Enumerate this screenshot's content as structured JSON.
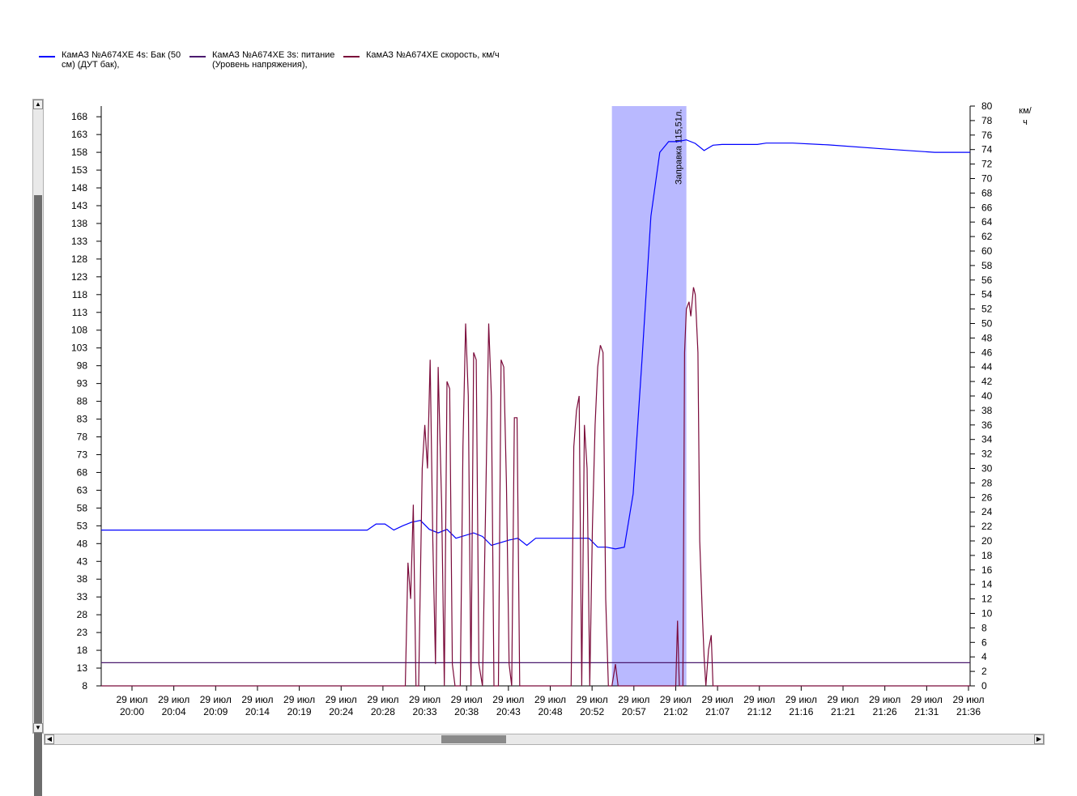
{
  "legend": [
    {
      "label": "КамАЗ №А674ХЕ 4s: Бак (50 см) (ДУТ бак),",
      "color": "#0000ff"
    },
    {
      "label": "КамАЗ №А674ХЕ 3s: питание (Уровень напряжения),",
      "color": "#4b1a6e"
    },
    {
      "label": "КамАЗ №А674ХЕ скорость, км/ч",
      "color": "#7a0a3a"
    }
  ],
  "scrollbars": {
    "up_icon": "up-arrow-icon",
    "down_icon": "down-arrow-icon",
    "left_icon": "left-arrow-icon",
    "right_icon": "right-arrow-icon"
  },
  "chart_data": {
    "type": "line",
    "x_ticks": [
      "29 июл\n20:00",
      "29 июл\n20:04",
      "29 июл\n20:09",
      "29 июл\n20:14",
      "29 июл\n20:19",
      "29 июл\n20:24",
      "29 июл\n20:28",
      "29 июл\n20:33",
      "29 июл\n20:38",
      "29 июл\n20:43",
      "29 июл\n20:48",
      "29 июл\n20:52",
      "29 июл\n20:57",
      "29 июл\n21:02",
      "29 июл\n21:07",
      "29 июл\n21:12",
      "29 июл\n21:16",
      "29 июл\n21:21",
      "29 июл\n21:26",
      "29 июл\n21:31",
      "29 июл\n21:36"
    ],
    "xlim": [
      "19:58",
      "21:36"
    ],
    "left_axis": {
      "ylim": [
        8,
        171
      ],
      "ticks": [
        8,
        13,
        18,
        23,
        28,
        33,
        38,
        43,
        48,
        53,
        58,
        63,
        68,
        73,
        78,
        83,
        88,
        93,
        98,
        103,
        108,
        113,
        118,
        123,
        128,
        133,
        138,
        143,
        148,
        153,
        158,
        163,
        168
      ]
    },
    "right_axis": {
      "label": "км/ч",
      "ylim": [
        0,
        80
      ],
      "ticks": [
        0,
        2,
        4,
        6,
        8,
        10,
        12,
        14,
        16,
        18,
        20,
        22,
        24,
        26,
        28,
        30,
        32,
        34,
        36,
        38,
        40,
        42,
        44,
        46,
        48,
        50,
        52,
        54,
        56,
        58,
        60,
        62,
        64,
        66,
        68,
        70,
        72,
        74,
        76,
        78,
        80
      ]
    },
    "highlight": {
      "x_start": "20:55.6",
      "x_end": "21:04",
      "color": "#b9b9ff",
      "annotation": "Заправка 115,51л."
    },
    "series": [
      {
        "name": "КамАЗ №А674ХЕ 4s: Бак (50 см) (ДУТ бак),",
        "axis": "left",
        "color": "#0000ff",
        "points": [
          [
            "19:58",
            51.8
          ],
          [
            "20:28",
            51.8
          ],
          [
            "20:29",
            53.5
          ],
          [
            "20:30",
            53.5
          ],
          [
            "20:31",
            51.8
          ],
          [
            "20:32",
            53
          ],
          [
            "20:33",
            54
          ],
          [
            "20:34",
            54.5
          ],
          [
            "20:35",
            52
          ],
          [
            "20:36",
            51
          ],
          [
            "20:37",
            52
          ],
          [
            "20:38",
            49.5
          ],
          [
            "20:40",
            51
          ],
          [
            "20:41",
            50
          ],
          [
            "20:42",
            47.5
          ],
          [
            "20:44",
            49
          ],
          [
            "20:45",
            49.5
          ],
          [
            "20:46",
            47.5
          ],
          [
            "20:47",
            49.5
          ],
          [
            "20:53",
            49.5
          ],
          [
            "20:54",
            47
          ],
          [
            "20:55",
            47
          ],
          [
            "20:56",
            46.5
          ],
          [
            "20:57",
            47
          ],
          [
            "20:58",
            62
          ],
          [
            "20:59",
            100
          ],
          [
            "21:00",
            140
          ],
          [
            "21:01",
            158
          ],
          [
            "21:02",
            161
          ],
          [
            "21:03",
            161
          ],
          [
            "21:04",
            161.5
          ],
          [
            "21:05",
            160.5
          ],
          [
            "21:06",
            158.5
          ],
          [
            "21:07",
            160
          ],
          [
            "21:08",
            160.2
          ],
          [
            "21:12",
            160.2
          ],
          [
            "21:13",
            160.6
          ],
          [
            "21:16",
            160.6
          ],
          [
            "21:20",
            160.1
          ],
          [
            "21:26",
            159
          ],
          [
            "21:32",
            158
          ],
          [
            "21:36",
            158
          ]
        ]
      },
      {
        "name": "КамАЗ №А674ХЕ 3s: питание (Уровень напряжения),",
        "axis": "left",
        "color": "#4b1a6e",
        "points": [
          [
            "19:58",
            14.5
          ],
          [
            "21:36",
            14.5
          ]
        ]
      },
      {
        "name": "КамАЗ №А674ХЕ скорость, км/ч",
        "axis": "right",
        "color": "#7a0a3a",
        "points": [
          [
            "19:58",
            0
          ],
          [
            "20:32.3",
            0
          ],
          [
            "20:32.6",
            17
          ],
          [
            "20:32.9",
            12
          ],
          [
            "20:33.2",
            25
          ],
          [
            "20:33.5",
            0
          ],
          [
            "20:33.8",
            0
          ],
          [
            "20:34.2",
            30
          ],
          [
            "20:34.5",
            36
          ],
          [
            "20:34.8",
            30
          ],
          [
            "20:35.1",
            45
          ],
          [
            "20:35.4",
            20
          ],
          [
            "20:35.7",
            3
          ],
          [
            "20:36.0",
            44
          ],
          [
            "20:36.4",
            25
          ],
          [
            "20:36.7",
            0
          ],
          [
            "20:37.0",
            42
          ],
          [
            "20:37.3",
            41
          ],
          [
            "20:37.6",
            3
          ],
          [
            "20:37.9",
            0
          ],
          [
            "20:38.5",
            0
          ],
          [
            "20:38.8",
            33
          ],
          [
            "20:39.1",
            50
          ],
          [
            "20:39.4",
            40
          ],
          [
            "20:39.7",
            0
          ],
          [
            "20:40.0",
            46
          ],
          [
            "20:40.3",
            45
          ],
          [
            "20:40.6",
            3
          ],
          [
            "20:41.0",
            0
          ],
          [
            "20:41.4",
            28
          ],
          [
            "20:41.7",
            50
          ],
          [
            "20:42.0",
            40
          ],
          [
            "20:42.3",
            0
          ],
          [
            "20:42.8",
            0
          ],
          [
            "20:43.1",
            45
          ],
          [
            "20:43.4",
            44
          ],
          [
            "20:43.7",
            28
          ],
          [
            "20:44.0",
            3
          ],
          [
            "20:44.3",
            0
          ],
          [
            "20:44.6",
            37
          ],
          [
            "20:44.9",
            37
          ],
          [
            "20:45.2",
            0
          ],
          [
            "20:51.0",
            0
          ],
          [
            "20:51.3",
            33
          ],
          [
            "20:51.6",
            38
          ],
          [
            "20:51.9",
            40
          ],
          [
            "20:52.2",
            0
          ],
          [
            "20:52.5",
            36
          ],
          [
            "20:52.8",
            30
          ],
          [
            "20:53.1",
            0
          ],
          [
            "20:53.4",
            22
          ],
          [
            "20:53.7",
            36
          ],
          [
            "20:54.0",
            44
          ],
          [
            "20:54.3",
            47
          ],
          [
            "20:54.6",
            46
          ],
          [
            "20:54.9",
            12
          ],
          [
            "20:55.2",
            0
          ],
          [
            "20:55.6",
            0
          ],
          [
            "20:56.0",
            3
          ],
          [
            "20:56.3",
            0
          ],
          [
            "21:02.8",
            0
          ],
          [
            "21:03.0",
            9
          ],
          [
            "21:03.2",
            0
          ],
          [
            "21:03.6",
            0
          ],
          [
            "21:03.8",
            46
          ],
          [
            "21:04.0",
            52
          ],
          [
            "21:04.3",
            53
          ],
          [
            "21:04.5",
            51
          ],
          [
            "21:04.8",
            55
          ],
          [
            "21:05.0",
            54
          ],
          [
            "21:05.3",
            46
          ],
          [
            "21:05.5",
            20
          ],
          [
            "21:05.8",
            10
          ],
          [
            "21:06.0",
            4
          ],
          [
            "21:06.2",
            0
          ],
          [
            "21:06.5",
            5
          ],
          [
            "21:06.8",
            7
          ],
          [
            "21:07.0",
            0
          ],
          [
            "21:36",
            0
          ]
        ]
      }
    ]
  }
}
